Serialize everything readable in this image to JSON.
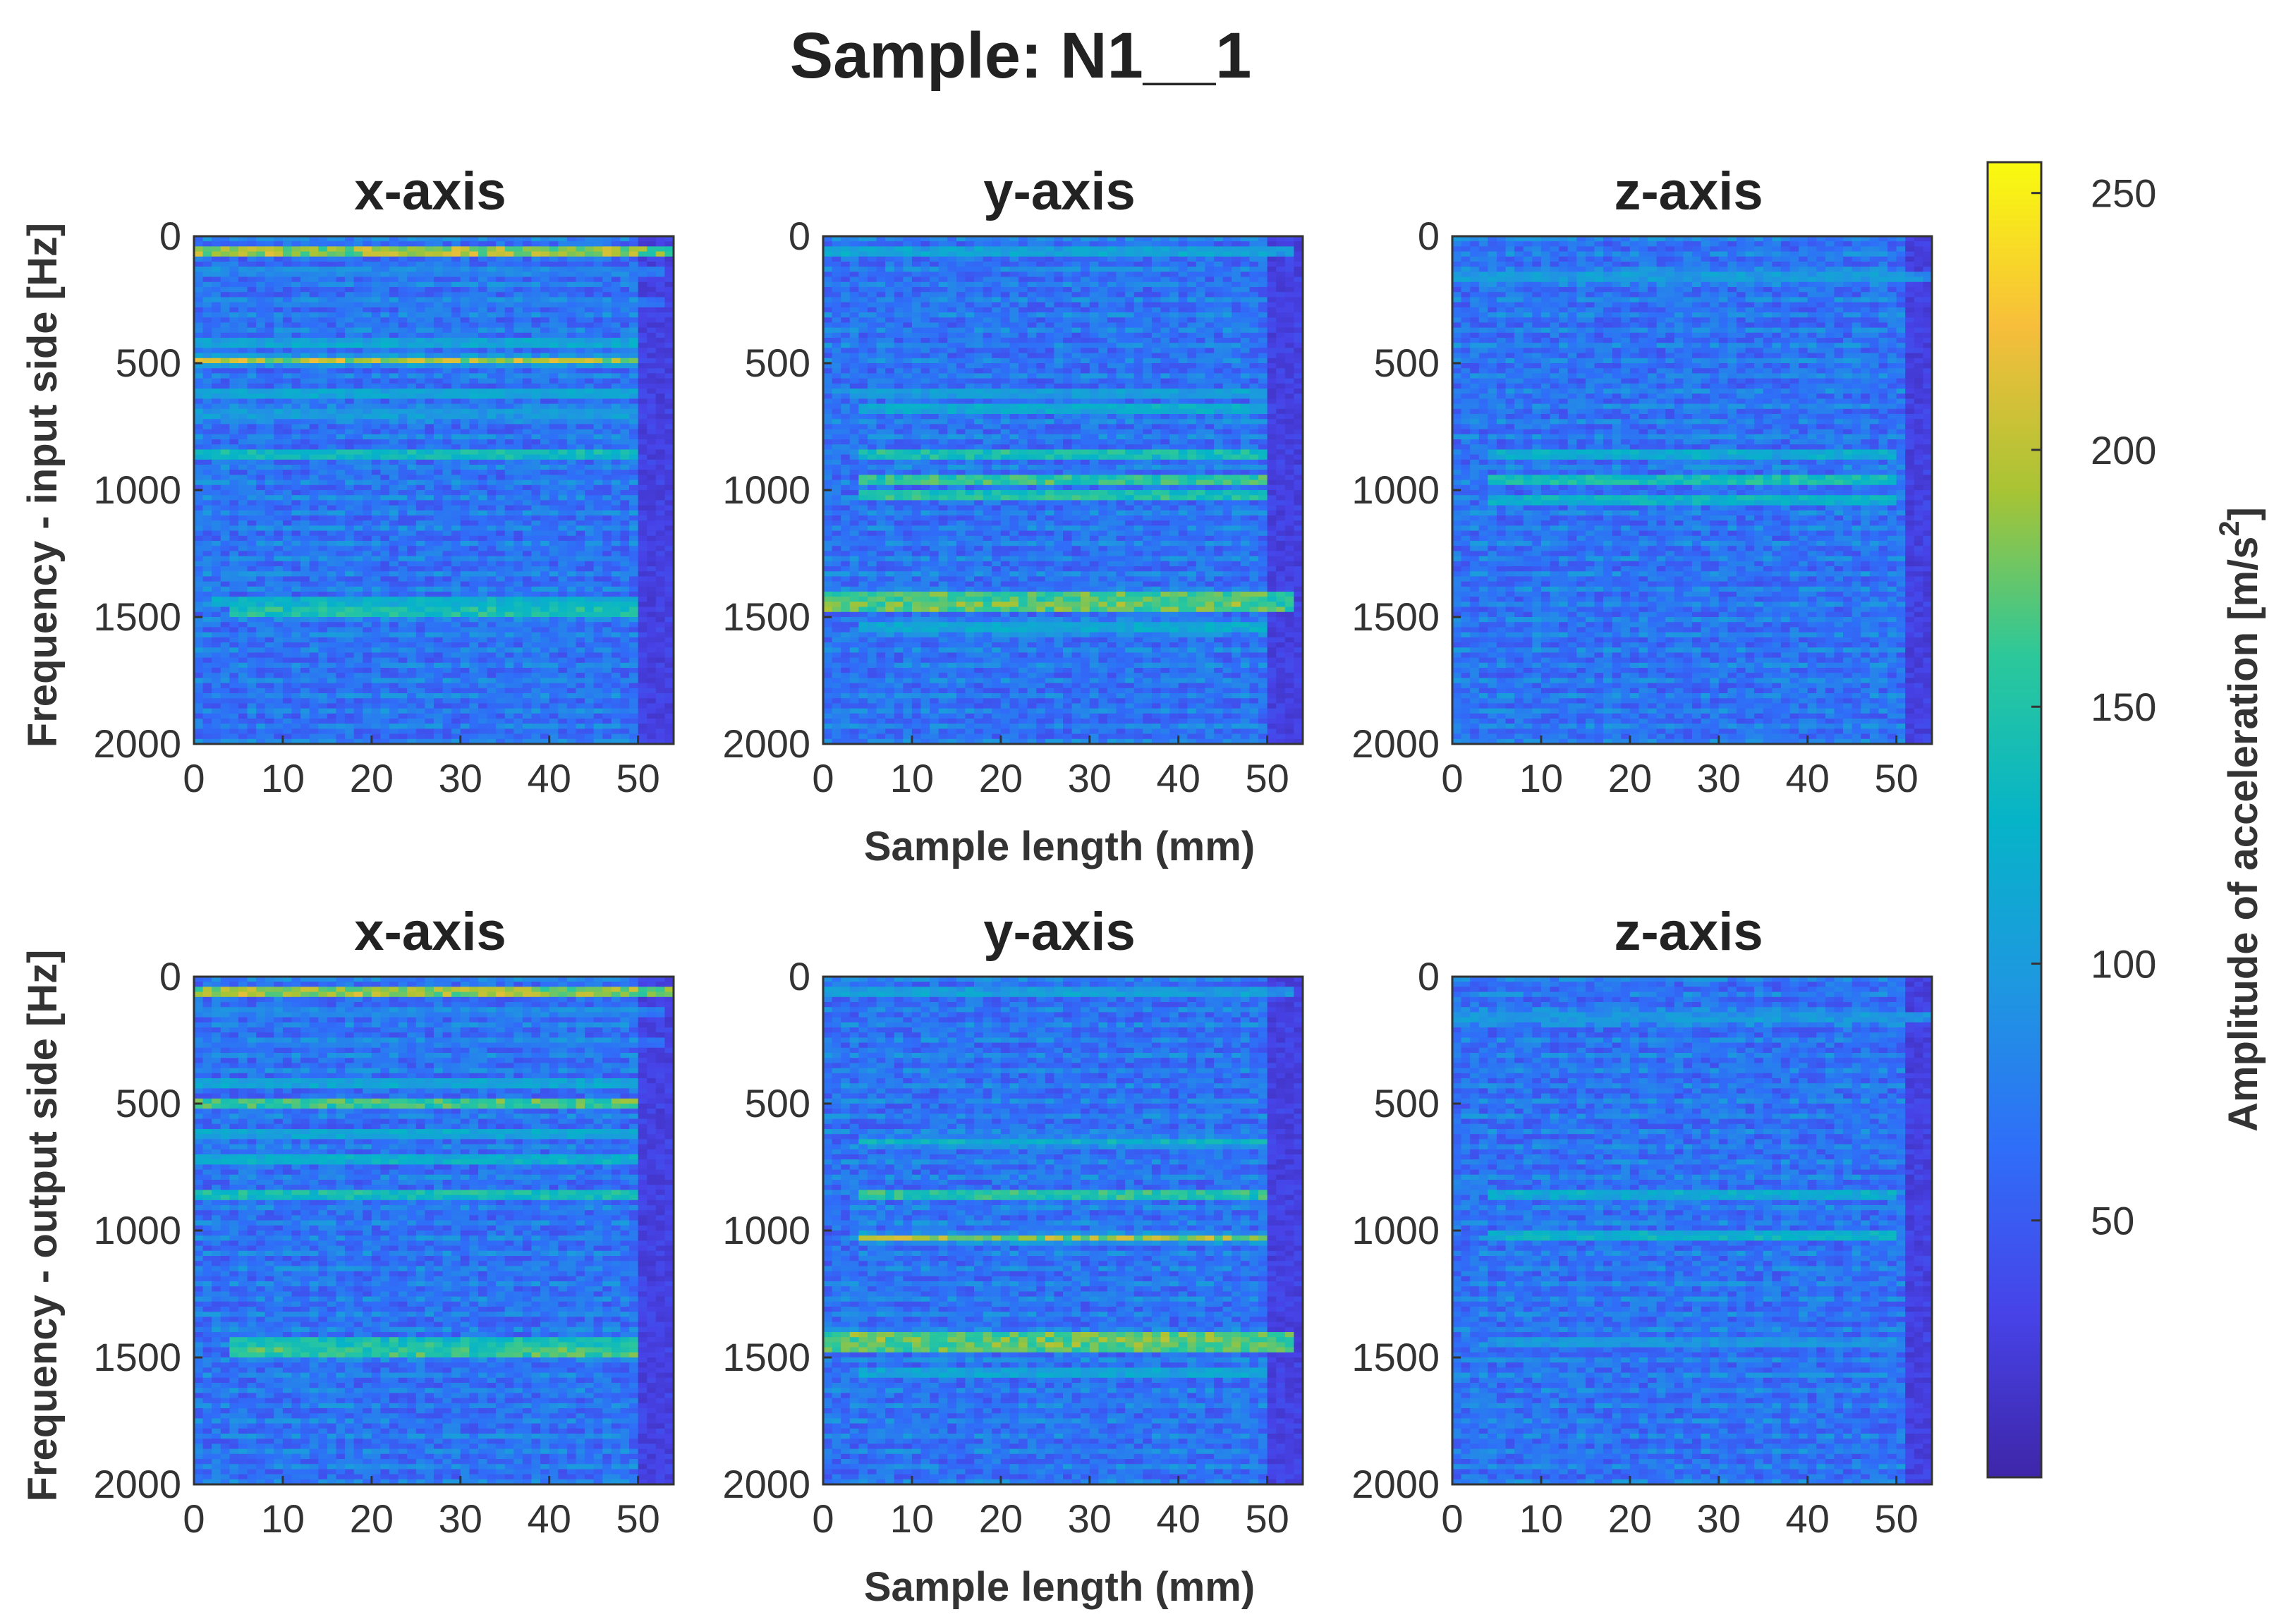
{
  "chart_data": {
    "type": "heatmap",
    "title": "Sample: N1__1",
    "colormap": "parula",
    "color_range": [
      0,
      256
    ],
    "colorbar": {
      "label": "Amplitude of acceleration [m/s",
      "label_superscript": "2",
      "label_suffix": "]",
      "ticks": [
        "50",
        "100",
        "150",
        "200",
        "250"
      ],
      "tick_values": [
        50,
        100,
        150,
        200,
        250
      ]
    },
    "shared": {
      "xlim": [
        0,
        54
      ],
      "ylim": [
        0,
        2000
      ],
      "y_reversed": true,
      "xticks": [
        "0",
        "10",
        "20",
        "30",
        "40",
        "50"
      ],
      "xtick_values": [
        0,
        10,
        20,
        30,
        40,
        50
      ],
      "yticks": [
        "0",
        "500",
        "1000",
        "1500",
        "2000"
      ],
      "ytick_values": [
        0,
        500,
        1000,
        1500,
        2000
      ]
    },
    "rows": [
      {
        "ylabel": "Frequency - input side [Hz]",
        "xlabel": "Sample length (mm)",
        "panels": [
          {
            "title": "x-axis",
            "end_mm": 49,
            "bands": [
              {
                "hz": 60,
                "value": 240,
                "start_mm": 0,
                "end_mm": 53
              },
              {
                "hz": 140,
                "value": 90,
                "start_mm": 0,
                "end_mm": 52
              },
              {
                "hz": 260,
                "value": 80,
                "start_mm": 0,
                "end_mm": 52
              },
              {
                "hz": 420,
                "value": 130,
                "start_mm": 0,
                "end_mm": 49
              },
              {
                "hz": 490,
                "value": 200,
                "start_mm": 0,
                "end_mm": 49
              },
              {
                "hz": 620,
                "value": 130,
                "start_mm": 0,
                "end_mm": 49
              },
              {
                "hz": 700,
                "value": 120,
                "start_mm": 0,
                "end_mm": 49
              },
              {
                "hz": 860,
                "value": 170,
                "start_mm": 0,
                "end_mm": 49
              },
              {
                "hz": 1440,
                "value": 150,
                "start_mm": 2,
                "end_mm": 49
              },
              {
                "hz": 1480,
                "value": 185,
                "start_mm": 4,
                "end_mm": 49
              }
            ]
          },
          {
            "title": "y-axis",
            "end_mm": 49,
            "bands": [
              {
                "hz": 60,
                "value": 130,
                "start_mm": 0,
                "end_mm": 52
              },
              {
                "hz": 620,
                "value": 120,
                "start_mm": 3,
                "end_mm": 49
              },
              {
                "hz": 680,
                "value": 140,
                "start_mm": 4,
                "end_mm": 49
              },
              {
                "hz": 860,
                "value": 175,
                "start_mm": 4,
                "end_mm": 49
              },
              {
                "hz": 960,
                "value": 195,
                "start_mm": 4,
                "end_mm": 49
              },
              {
                "hz": 1020,
                "value": 180,
                "start_mm": 4,
                "end_mm": 49
              },
              {
                "hz": 1420,
                "value": 215,
                "start_mm": 0,
                "end_mm": 52
              },
              {
                "hz": 1460,
                "value": 220,
                "start_mm": 0,
                "end_mm": 52
              },
              {
                "hz": 1540,
                "value": 140,
                "start_mm": 4,
                "end_mm": 49
              }
            ]
          },
          {
            "title": "z-axis",
            "end_mm": 50,
            "bands": [
              {
                "hz": 160,
                "value": 120,
                "start_mm": 0,
                "end_mm": 54
              },
              {
                "hz": 860,
                "value": 140,
                "start_mm": 4,
                "end_mm": 49
              },
              {
                "hz": 960,
                "value": 175,
                "start_mm": 4,
                "end_mm": 49
              },
              {
                "hz": 1040,
                "value": 150,
                "start_mm": 4,
                "end_mm": 49
              }
            ]
          }
        ]
      },
      {
        "ylabel": "Frequency - output side [Hz]",
        "xlabel": "Sample length (mm)",
        "panels": [
          {
            "title": "x-axis",
            "end_mm": 49,
            "bands": [
              {
                "hz": 60,
                "value": 240,
                "start_mm": 0,
                "end_mm": 53
              },
              {
                "hz": 140,
                "value": 90,
                "start_mm": 0,
                "end_mm": 52
              },
              {
                "hz": 260,
                "value": 80,
                "start_mm": 0,
                "end_mm": 52
              },
              {
                "hz": 420,
                "value": 130,
                "start_mm": 0,
                "end_mm": 49
              },
              {
                "hz": 500,
                "value": 205,
                "start_mm": 0,
                "end_mm": 49
              },
              {
                "hz": 620,
                "value": 130,
                "start_mm": 0,
                "end_mm": 49
              },
              {
                "hz": 720,
                "value": 145,
                "start_mm": 0,
                "end_mm": 49
              },
              {
                "hz": 860,
                "value": 175,
                "start_mm": 0,
                "end_mm": 49
              },
              {
                "hz": 1440,
                "value": 175,
                "start_mm": 4,
                "end_mm": 49
              },
              {
                "hz": 1480,
                "value": 205,
                "start_mm": 4,
                "end_mm": 49
              }
            ]
          },
          {
            "title": "y-axis",
            "end_mm": 49,
            "bands": [
              {
                "hz": 60,
                "value": 120,
                "start_mm": 0,
                "end_mm": 52
              },
              {
                "hz": 650,
                "value": 130,
                "start_mm": 4,
                "end_mm": 49
              },
              {
                "hz": 860,
                "value": 190,
                "start_mm": 4,
                "end_mm": 49
              },
              {
                "hz": 1030,
                "value": 190,
                "start_mm": 4,
                "end_mm": 49
              },
              {
                "hz": 1420,
                "value": 225,
                "start_mm": 0,
                "end_mm": 52
              },
              {
                "hz": 1460,
                "value": 215,
                "start_mm": 0,
                "end_mm": 52
              },
              {
                "hz": 1560,
                "value": 130,
                "start_mm": 4,
                "end_mm": 49
              }
            ]
          },
          {
            "title": "z-axis",
            "end_mm": 50,
            "bands": [
              {
                "hz": 160,
                "value": 115,
                "start_mm": 0,
                "end_mm": 54
              },
              {
                "hz": 860,
                "value": 140,
                "start_mm": 4,
                "end_mm": 49
              },
              {
                "hz": 1020,
                "value": 150,
                "start_mm": 4,
                "end_mm": 49
              },
              {
                "hz": 1440,
                "value": 110,
                "start_mm": 4,
                "end_mm": 49
              }
            ]
          }
        ]
      }
    ]
  }
}
